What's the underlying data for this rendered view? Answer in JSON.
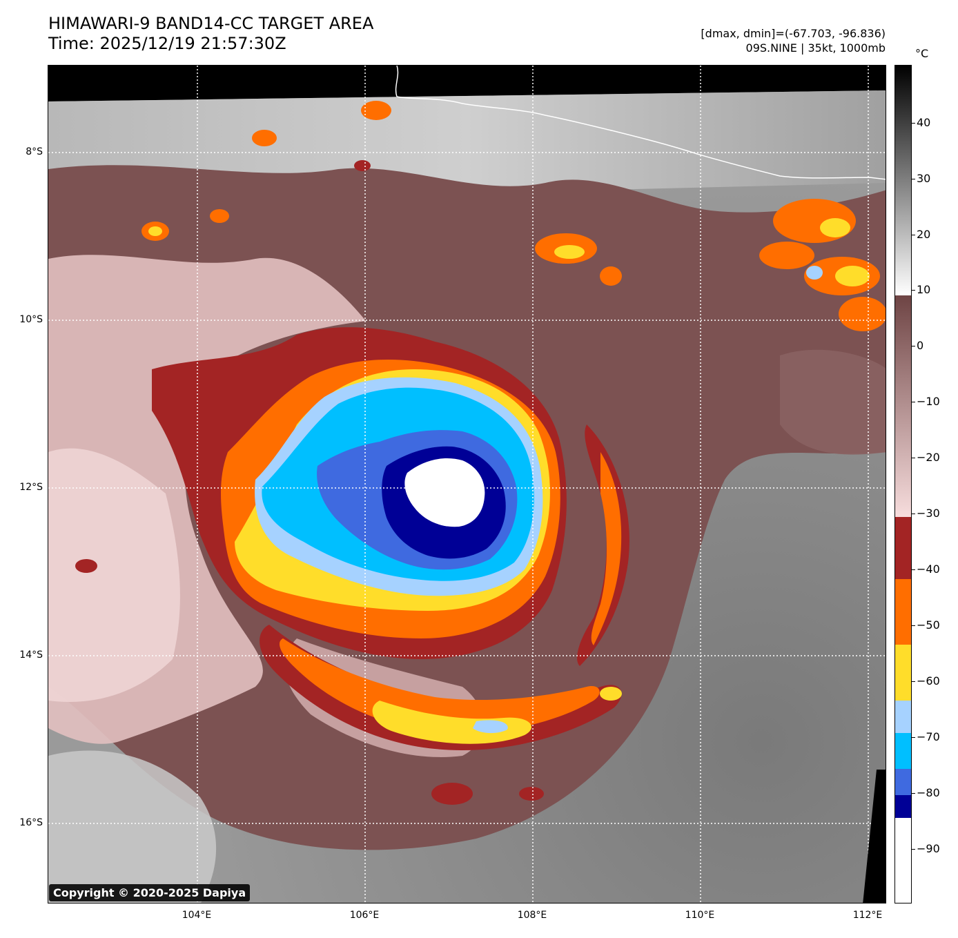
{
  "header": {
    "title_line1": "HIMAWARI-9 BAND14-CC TARGET AREA",
    "title_line2": "Time: 2025/12/19 21:57:30Z",
    "meta_line1": "[dmax, dmin]=(-67.703, -96.836)",
    "meta_line2": "09S.NINE | 35kt, 1000mb"
  },
  "map": {
    "lat_labels": [
      "8°S",
      "10°S",
      "12°S",
      "14°S",
      "16°S"
    ],
    "lon_labels": [
      "104°E",
      "106°E",
      "108°E",
      "110°E",
      "112°E"
    ],
    "copyright": "Copyright © 2020-2025 Dapiya",
    "colors": {
      "ring_brown": "#a32424",
      "ring_orange": "#ff6e00",
      "ring_yellow": "#ffdd2a",
      "ring_lightblue": "#a6d2ff",
      "ring_cyan": "#00bfff",
      "ring_royal": "#3f6ae0",
      "ring_navy": "#000096",
      "eye_white": "#ffffff",
      "warm_cloud_brown": "#7c5050",
      "cold_cloud_pink": "#e8c9c9",
      "clear_gray": "#888888"
    }
  },
  "colorbar": {
    "unit": "°C",
    "labels": [
      "40",
      "30",
      "20",
      "10",
      "0",
      "−10",
      "−20",
      "−30",
      "−40",
      "−50",
      "−60",
      "−70",
      "−80",
      "−90"
    ]
  }
}
